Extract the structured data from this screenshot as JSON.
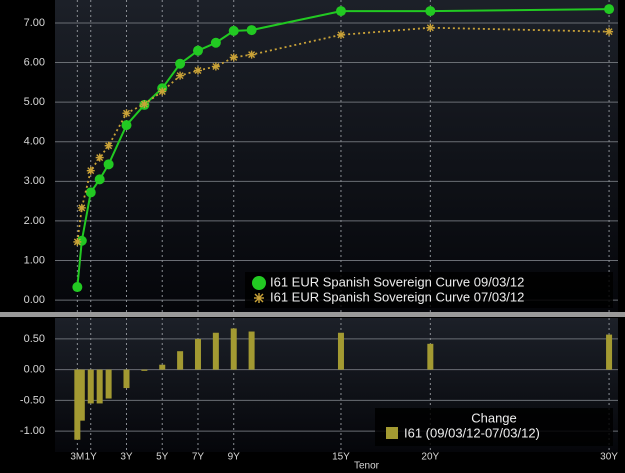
{
  "chart_data": [
    {
      "type": "line",
      "x": [
        0.25,
        0.5,
        1,
        1.5,
        2,
        3,
        4,
        5,
        6,
        7,
        8,
        9,
        10,
        15,
        20,
        30
      ],
      "xlim": [
        -1,
        30.5
      ],
      "ylim": [
        -0.3,
        7.58
      ],
      "yticks": [
        {
          "value": 0,
          "label": "0.00"
        },
        {
          "value": 1,
          "label": "1.00"
        },
        {
          "value": 2,
          "label": "2.00"
        },
        {
          "value": 3,
          "label": "3.00"
        },
        {
          "value": 4,
          "label": "4.00"
        },
        {
          "value": 5,
          "label": "5.00"
        },
        {
          "value": 6,
          "label": "6.00"
        },
        {
          "value": 7,
          "label": "7.00"
        }
      ],
      "grid": true,
      "legend": "lower right",
      "series": [
        {
          "name": "I61 EUR Spanish Sovereign Curve 09/03/12",
          "color": "#22c922",
          "marker": "circle",
          "values": [
            0.33,
            1.5,
            2.72,
            3.05,
            3.43,
            4.42,
            4.93,
            5.35,
            5.97,
            6.3,
            6.5,
            6.8,
            6.82,
            7.3,
            7.3,
            7.35
          ]
        },
        {
          "name": "I61 EUR Spanish Sovereign Curve 07/03/12",
          "color": "#c9a238",
          "marker": "star",
          "values": [
            1.47,
            2.33,
            3.27,
            3.6,
            3.9,
            4.72,
            4.95,
            5.27,
            5.67,
            5.8,
            5.9,
            6.13,
            6.2,
            6.7,
            6.88,
            6.78
          ]
        }
      ]
    },
    {
      "type": "bar",
      "x": [
        0.25,
        0.5,
        1,
        1.5,
        2,
        3,
        4,
        5,
        6,
        7,
        8,
        9,
        10,
        15,
        20,
        30
      ],
      "xlim": [
        -1,
        30.5
      ],
      "xticks": [
        {
          "value": 0.25,
          "label": "3M"
        },
        {
          "value": 1,
          "label": "1Y"
        },
        {
          "value": 3,
          "label": "3Y"
        },
        {
          "value": 5,
          "label": "5Y"
        },
        {
          "value": 7,
          "label": "7Y"
        },
        {
          "value": 9,
          "label": "9Y"
        },
        {
          "value": 15,
          "label": "15Y"
        },
        {
          "value": 20,
          "label": "20Y"
        },
        {
          "value": 30,
          "label": "30Y"
        }
      ],
      "x_label": "Tenor",
      "ylim": [
        -1.34,
        0.84
      ],
      "yticks": [
        {
          "value": -1,
          "label": "-1.00"
        },
        {
          "value": -0.5,
          "label": "-0.50"
        },
        {
          "value": 0,
          "label": "0.00"
        },
        {
          "value": 0.5,
          "label": "0.50"
        }
      ],
      "grid": true,
      "legend": "lower right",
      "legend_title": "Change",
      "series": [
        {
          "name": "I61 (09/03/12-07/03/12)",
          "color": "#a39a32",
          "values": [
            -1.14,
            -0.83,
            -0.55,
            -0.55,
            -0.47,
            -0.3,
            -0.02,
            0.08,
            0.3,
            0.5,
            0.6,
            0.67,
            0.62,
            0.6,
            0.42,
            0.57
          ]
        }
      ]
    }
  ]
}
